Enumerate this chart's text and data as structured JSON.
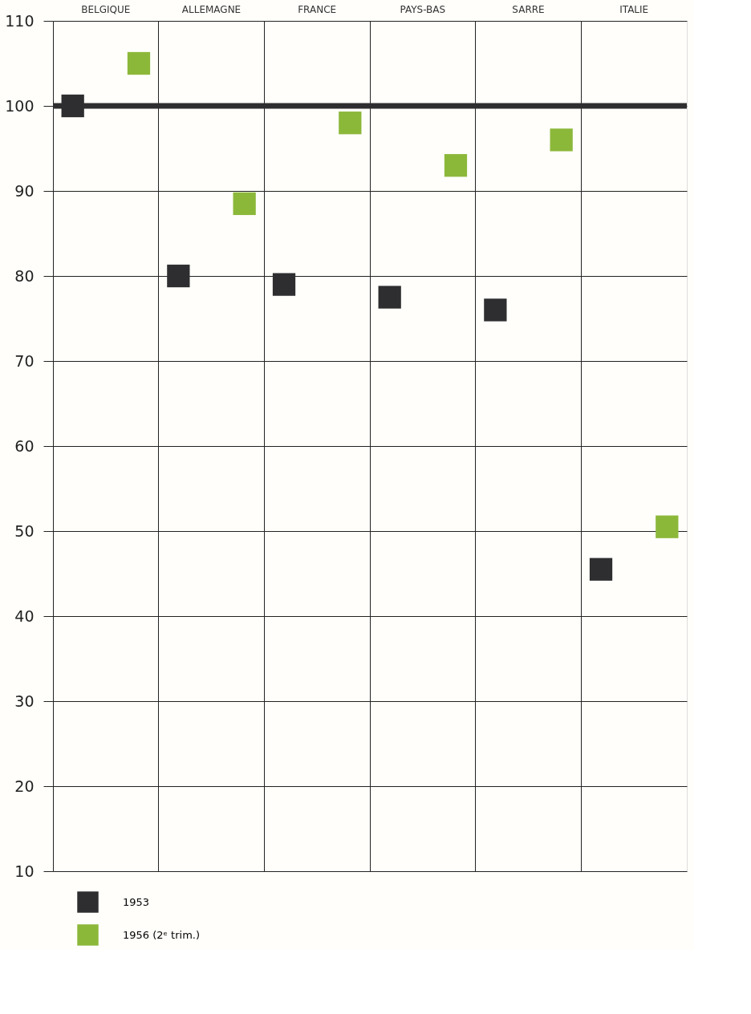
{
  "chart_data": {
    "type": "scatter",
    "marker": "square",
    "categories": [
      "BELGIQUE",
      "ALLEMAGNE",
      "FRANCE",
      "PAYS-BAS",
      "SARRE",
      "ITALIE"
    ],
    "series": [
      {
        "name": "1953",
        "color": "#2e2e30",
        "values": [
          100,
          80,
          79,
          77.5,
          76,
          45.5
        ]
      },
      {
        "name": "1956 (2ᵉ trim.)",
        "color": "#8cb83a",
        "values": [
          105,
          88.5,
          98,
          93,
          96,
          50.5
        ]
      }
    ],
    "ylim": [
      10,
      110
    ],
    "yticks": [
      10,
      20,
      30,
      40,
      50,
      60,
      70,
      80,
      90,
      100,
      110
    ],
    "ref_lines": [
      {
        "axis": "y",
        "value": 100,
        "color": "#2e2e30"
      }
    ],
    "grid": true,
    "legend": "bottom left"
  }
}
